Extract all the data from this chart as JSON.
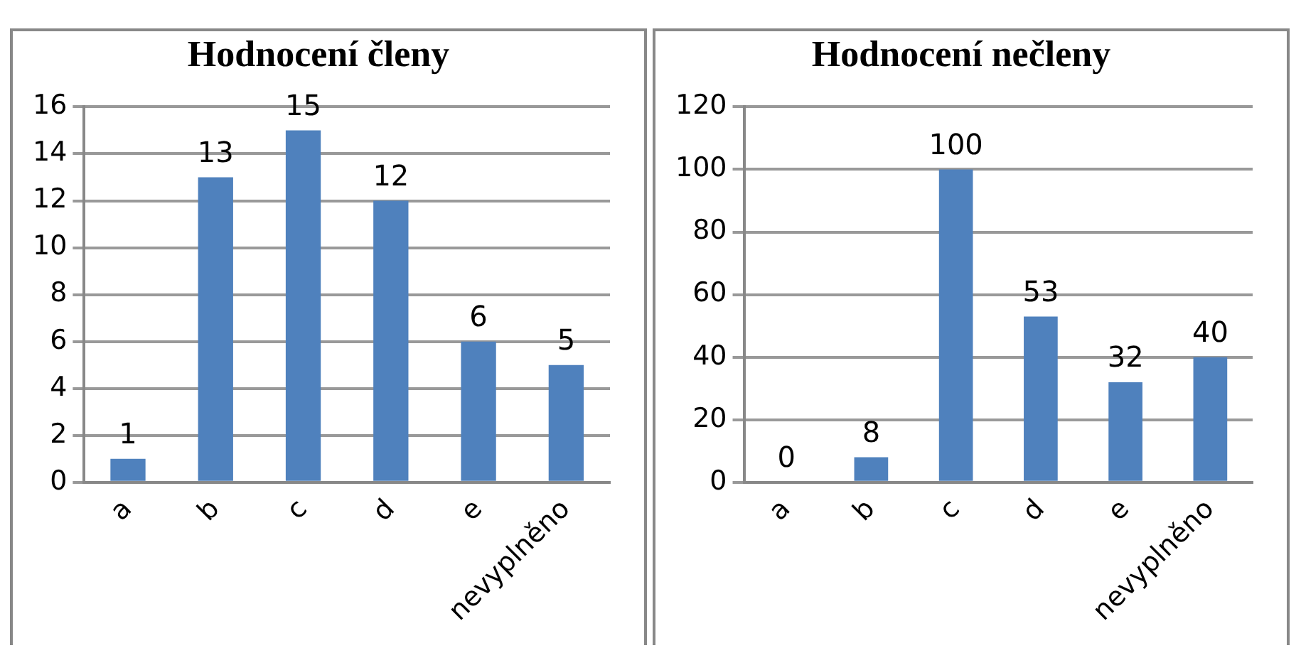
{
  "chart_data": [
    {
      "type": "bar",
      "title": "Hodnocení členy",
      "categories": [
        "a",
        "b",
        "c",
        "d",
        "e",
        "nevyplněno"
      ],
      "values": [
        1,
        13,
        15,
        12,
        6,
        5
      ],
      "color": "#4f81bd",
      "ylim": [
        0,
        16
      ],
      "yticks": [
        0,
        2,
        4,
        6,
        8,
        10,
        12,
        14,
        16
      ],
      "grid": "y",
      "data_labels": true
    },
    {
      "type": "bar",
      "title": "Hodnocení nečleny",
      "categories": [
        "a",
        "b",
        "c",
        "d",
        "e",
        "nevyplněno"
      ],
      "values": [
        0,
        8,
        100,
        53,
        32,
        40
      ],
      "color": "#4f81bd",
      "ylim": [
        0,
        120
      ],
      "yticks": [
        0,
        20,
        40,
        60,
        80,
        100,
        120
      ],
      "grid": "y",
      "data_labels": true
    }
  ]
}
